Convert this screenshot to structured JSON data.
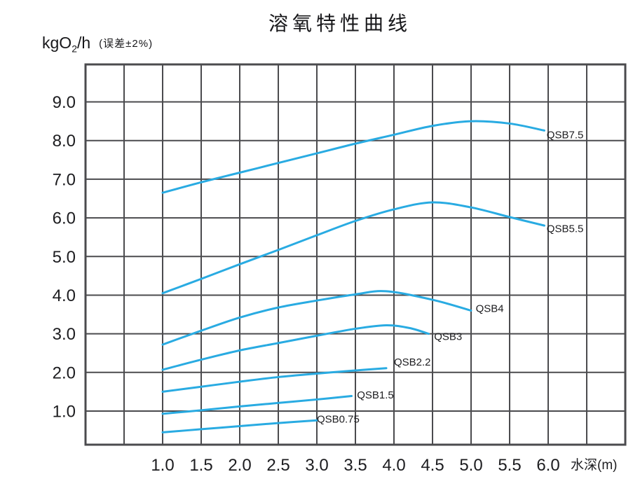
{
  "title": "溶氧特性曲线",
  "y_unit": {
    "main": "kgO",
    "sub": "2",
    "rest": "/h"
  },
  "error_note": "(误差±2%)",
  "chart_data": {
    "type": "line",
    "title": "溶氧特性曲线",
    "ylabel": "kgO2/h",
    "ylabel_note": "(误差±2%)",
    "xlabel": "水深(m)",
    "x_ticks": [
      "1.0",
      "1.5",
      "2.0",
      "2.5",
      "3.0",
      "3.5",
      "4.0",
      "4.5",
      "5.0",
      "5.5",
      "6.0"
    ],
    "y_ticks": [
      "9.0",
      "8.0",
      "7.0",
      "6.0",
      "5.0",
      "4.0",
      "3.0",
      "2.0",
      "1.0"
    ],
    "xlim": [
      0,
      7
    ],
    "ylim": [
      0.13,
      9.97
    ],
    "x_grid_step": 0.5,
    "y_grid_step": 1.0,
    "grid": true,
    "legend_position": "inline-end-of-curve",
    "curve_color": "#29abe2",
    "grid_color": "#4b4b4e",
    "text_color": "#1d1d20",
    "series": [
      {
        "name": "QSB7.5",
        "points": [
          [
            1.0,
            6.65
          ],
          [
            1.5,
            6.92
          ],
          [
            2.0,
            7.17
          ],
          [
            2.5,
            7.42
          ],
          [
            3.0,
            7.67
          ],
          [
            3.5,
            7.92
          ],
          [
            4.0,
            8.15
          ],
          [
            4.5,
            8.38
          ],
          [
            5.0,
            8.5
          ],
          [
            5.5,
            8.44
          ],
          [
            5.95,
            8.26
          ]
        ],
        "label_at": [
          5.98,
          8.06
        ]
      },
      {
        "name": "QSB5.5",
        "points": [
          [
            1.0,
            4.05
          ],
          [
            1.5,
            4.42
          ],
          [
            2.0,
            4.8
          ],
          [
            2.5,
            5.17
          ],
          [
            3.0,
            5.55
          ],
          [
            3.5,
            5.92
          ],
          [
            4.0,
            6.22
          ],
          [
            4.5,
            6.4
          ],
          [
            5.0,
            6.27
          ],
          [
            5.5,
            6.02
          ],
          [
            5.95,
            5.8
          ]
        ],
        "label_at": [
          5.98,
          5.63
        ]
      },
      {
        "name": "QSB4",
        "points": [
          [
            1.0,
            2.72
          ],
          [
            1.5,
            3.08
          ],
          [
            2.0,
            3.42
          ],
          [
            2.5,
            3.68
          ],
          [
            3.0,
            3.86
          ],
          [
            3.5,
            4.02
          ],
          [
            3.9,
            4.1
          ],
          [
            4.5,
            3.88
          ],
          [
            5.0,
            3.6
          ]
        ],
        "label_at": [
          5.06,
          3.56
        ]
      },
      {
        "name": "QSB3",
        "points": [
          [
            1.0,
            2.07
          ],
          [
            1.5,
            2.33
          ],
          [
            2.0,
            2.57
          ],
          [
            2.5,
            2.76
          ],
          [
            3.0,
            2.95
          ],
          [
            3.5,
            3.13
          ],
          [
            3.9,
            3.22
          ],
          [
            4.2,
            3.15
          ],
          [
            4.45,
            3.0
          ]
        ],
        "label_at": [
          4.52,
          2.84
        ]
      },
      {
        "name": "QSB2.2",
        "points": [
          [
            1.0,
            1.5
          ],
          [
            1.5,
            1.63
          ],
          [
            2.0,
            1.76
          ],
          [
            2.5,
            1.88
          ],
          [
            3.0,
            1.97
          ],
          [
            3.5,
            2.05
          ],
          [
            3.9,
            2.11
          ]
        ],
        "label_at": [
          4.0,
          2.18
        ]
      },
      {
        "name": "QSB1.5",
        "points": [
          [
            1.0,
            0.93
          ],
          [
            1.5,
            1.02
          ],
          [
            2.0,
            1.12
          ],
          [
            2.5,
            1.21
          ],
          [
            3.0,
            1.3
          ],
          [
            3.45,
            1.39
          ]
        ],
        "label_at": [
          3.52,
          1.33
        ]
      },
      {
        "name": "QSB0.75",
        "points": [
          [
            1.0,
            0.45
          ],
          [
            1.5,
            0.53
          ],
          [
            2.0,
            0.61
          ],
          [
            2.5,
            0.69
          ],
          [
            3.0,
            0.76
          ]
        ],
        "label_at": [
          3.0,
          0.7
        ]
      }
    ]
  }
}
